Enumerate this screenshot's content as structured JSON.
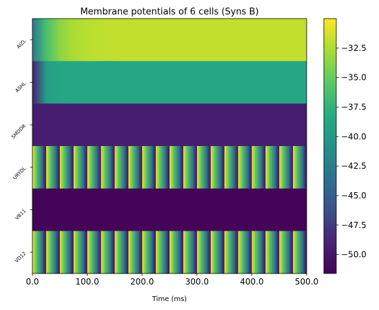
{
  "chart_data": {
    "type": "heatmap",
    "title": "Membrane potentials of 6 cells (Syns B)",
    "xlabel": "Time (ms)",
    "ylabel": "",
    "xlim": [
      0,
      500
    ],
    "x_ticks": [
      0,
      100,
      200,
      300,
      400,
      500
    ],
    "x_tick_labels": [
      "0.0",
      "100.0",
      "200.0",
      "300.0",
      "400.0",
      "500.0"
    ],
    "rows": [
      {
        "label": "AIZL",
        "pattern": "ramp",
        "start_value": -43.0,
        "end_value": -31.8,
        "tau_ms": 28
      },
      {
        "label": "ASHL",
        "pattern": "ramp",
        "start_value": -49.0,
        "end_value": -38.6,
        "tau_ms": 10
      },
      {
        "label": "SMDDR",
        "pattern": "constant",
        "value": -49.3
      },
      {
        "label": "URYDL",
        "pattern": "periodic",
        "period_ms": 25,
        "value_min": -51.0,
        "value_max": -30.4
      },
      {
        "label": "VB11",
        "pattern": "constant",
        "value": -51.3
      },
      {
        "label": "VD12",
        "pattern": "periodic",
        "period_ms": 25,
        "value_min": -51.0,
        "value_max": -30.4
      }
    ],
    "colormap": "viridis",
    "color_range": [
      -51.6,
      -30.0
    ],
    "colorbar_ticks": [
      -32.5,
      -35.0,
      -37.5,
      -40.0,
      -42.5,
      -45.0,
      -47.5,
      -50.0
    ],
    "colorbar_tick_labels": [
      "−32.5",
      "−35.0",
      "−37.5",
      "−40.0",
      "−42.5",
      "−45.0",
      "−47.5",
      "−50.0"
    ],
    "grid": false,
    "legend": "none"
  }
}
